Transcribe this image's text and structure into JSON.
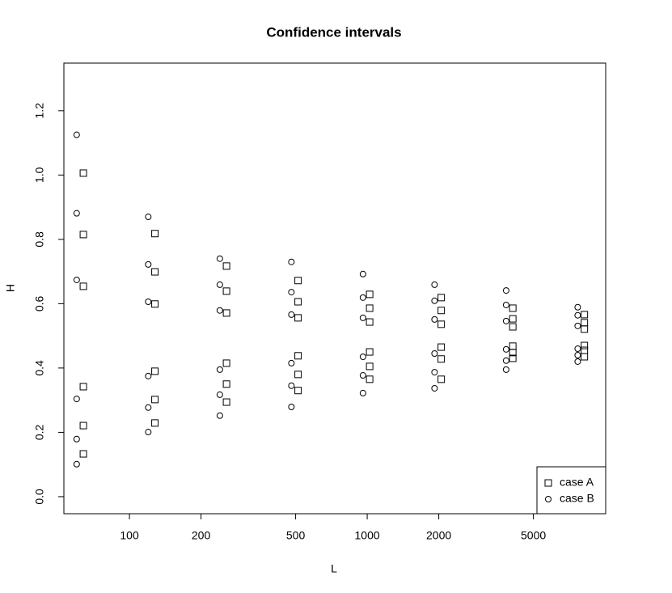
{
  "chart_data": {
    "type": "scatter",
    "title": "Confidence intervals",
    "x_label": "L",
    "y_label": "H",
    "xlog": true,
    "xlim": [
      53,
      10070
    ],
    "ylim": [
      -0.053,
      1.348
    ],
    "xticks": [
      100,
      200,
      500,
      1000,
      2000,
      5000
    ],
    "yticks": [
      {
        "value": 0,
        "label": "0.0"
      },
      0.2,
      0.4,
      0.6,
      0.8,
      {
        "value": 1,
        "label": "1.0"
      },
      1.2
    ],
    "legend": "bottom-right",
    "series": [
      {
        "name": "case A",
        "marker": "square",
        "color": "#000000",
        "x": [
          64,
          64,
          64,
          64,
          64,
          64,
          128,
          128,
          128,
          128,
          128,
          128,
          256,
          256,
          256,
          256,
          256,
          256,
          512,
          512,
          512,
          512,
          512,
          512,
          1024,
          1024,
          1024,
          1024,
          1024,
          1024,
          2048,
          2048,
          2048,
          2048,
          2048,
          2048,
          4096,
          4096,
          4096,
          4096,
          4096,
          4096,
          8192,
          8192,
          8192,
          8192,
          8192,
          8192
        ],
        "values": [
          1.006,
          0.815,
          0.654,
          0.342,
          0.221,
          0.133,
          0.818,
          0.699,
          0.599,
          0.39,
          0.302,
          0.229,
          0.717,
          0.639,
          0.571,
          0.415,
          0.35,
          0.294,
          0.672,
          0.606,
          0.556,
          0.438,
          0.38,
          0.33,
          0.629,
          0.586,
          0.543,
          0.45,
          0.405,
          0.365,
          0.619,
          0.579,
          0.536,
          0.465,
          0.428,
          0.365,
          0.586,
          0.553,
          0.528,
          0.468,
          0.448,
          0.43,
          0.566,
          0.541,
          0.521,
          0.47,
          0.455,
          0.435
        ]
      },
      {
        "name": "case B",
        "marker": "circle",
        "color": "#000000",
        "x": [
          60,
          60,
          60,
          60,
          60,
          60,
          120,
          120,
          120,
          120,
          120,
          120,
          240,
          240,
          240,
          240,
          240,
          240,
          480,
          480,
          480,
          480,
          480,
          480,
          960,
          960,
          960,
          960,
          960,
          960,
          1920,
          1920,
          1920,
          1920,
          1920,
          1920,
          3840,
          3840,
          3840,
          3840,
          3840,
          3840,
          7680,
          7680,
          7680,
          7680,
          7680,
          7680
        ],
        "values": [
          1.125,
          0.881,
          0.674,
          0.304,
          0.179,
          0.101,
          0.87,
          0.722,
          0.606,
          0.375,
          0.277,
          0.201,
          0.74,
          0.659,
          0.579,
          0.395,
          0.317,
          0.252,
          0.73,
          0.636,
          0.566,
          0.415,
          0.345,
          0.279,
          0.692,
          0.619,
          0.556,
          0.435,
          0.377,
          0.322,
          0.659,
          0.609,
          0.551,
          0.445,
          0.387,
          0.337,
          0.641,
          0.596,
          0.546,
          0.458,
          0.423,
          0.395,
          0.589,
          0.564,
          0.531,
          0.46,
          0.44,
          0.42
        ]
      }
    ]
  }
}
